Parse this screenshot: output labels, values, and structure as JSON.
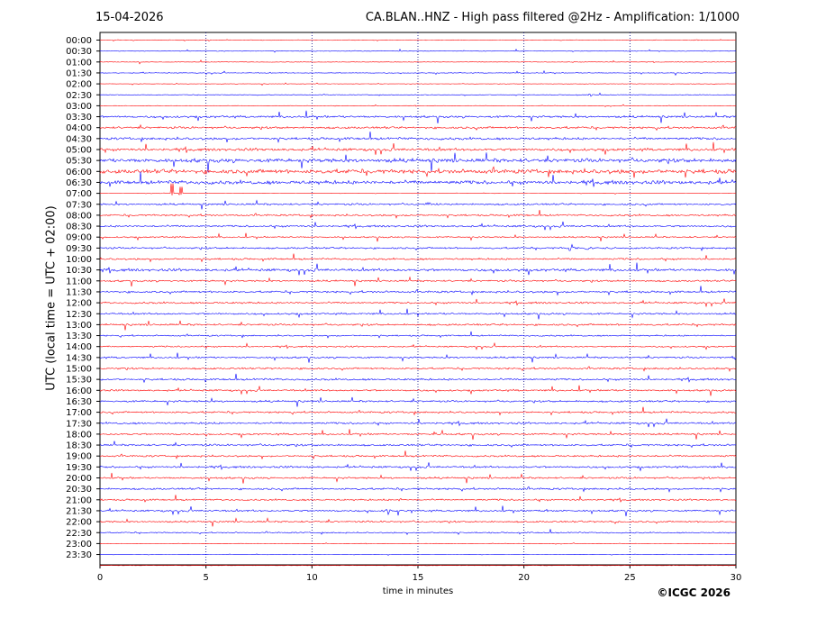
{
  "header": {
    "date": "15-04-2026",
    "title": "CA.BLAN..HNZ - High pass filtered @2Hz - Amplification: 1/1000"
  },
  "footer": {
    "copyright": "©ICGC 2026"
  },
  "chart_data": {
    "type": "line",
    "title": "CA.BLAN..HNZ - High pass filtered @2Hz - Amplification: 1/1000",
    "xlabel": "time in minutes",
    "ylabel": "UTC (local time = UTC + 02:00)",
    "xlim": [
      0,
      30
    ],
    "xticks": [
      0,
      5,
      10,
      15,
      20,
      25,
      30
    ],
    "grid_x": "dotted vertical lines at each x tick",
    "colors": {
      "odd_trace": "#ff0000",
      "even_trace": "#0000ff",
      "grid": "#000080"
    },
    "trace_labels": [
      "00:00",
      "00:30",
      "01:00",
      "01:30",
      "02:00",
      "02:30",
      "03:00",
      "03:30",
      "04:00",
      "04:30",
      "05:00",
      "05:30",
      "06:00",
      "06:30",
      "07:00",
      "07:30",
      "08:00",
      "08:30",
      "09:00",
      "09:30",
      "10:00",
      "10:30",
      "11:00",
      "11:30",
      "12:00",
      "12:30",
      "13:00",
      "13:30",
      "14:00",
      "14:30",
      "15:00",
      "15:30",
      "16:00",
      "16:30",
      "17:00",
      "17:30",
      "18:00",
      "18:30",
      "19:00",
      "19:30",
      "20:00",
      "20:30",
      "21:00",
      "21:30",
      "22:00",
      "22:30",
      "23:00",
      "23:30"
    ],
    "traces_visible": 49,
    "noise_level": [
      0.05,
      0.05,
      0.05,
      0.06,
      0.04,
      0.05,
      0.04,
      0.18,
      0.18,
      0.2,
      0.22,
      0.32,
      0.35,
      0.3,
      0.02,
      0.15,
      0.15,
      0.16,
      0.12,
      0.15,
      0.15,
      0.22,
      0.15,
      0.17,
      0.15,
      0.15,
      0.16,
      0.12,
      0.12,
      0.14,
      0.15,
      0.16,
      0.15,
      0.16,
      0.15,
      0.16,
      0.15,
      0.16,
      0.15,
      0.16,
      0.15,
      0.16,
      0.14,
      0.15,
      0.14,
      0.1,
      0.03,
      0.02,
      0.02
    ],
    "events": [
      {
        "trace": 0,
        "minute": 28.0,
        "amp": 0.35
      },
      {
        "trace": 5,
        "minute": 23.1,
        "amp": 0.55
      },
      {
        "trace": 14,
        "minute": 3.4,
        "amp": 1.2,
        "note": "step"
      },
      {
        "trace": 14,
        "minute": 3.8,
        "amp": 0.8,
        "note": "step"
      },
      {
        "trace": 15,
        "minute": 15.5,
        "amp": 0.7
      },
      {
        "trace": 19,
        "minute": 22.2,
        "amp": 0.9
      },
      {
        "trace": 19,
        "minute": 23.0,
        "amp": 0.8
      },
      {
        "trace": 29,
        "minute": 29.9,
        "amp": 0.8
      },
      {
        "trace": 36,
        "minute": 15.8,
        "amp": 0.6
      },
      {
        "trace": 42,
        "minute": 14.2,
        "amp": 0.5
      },
      {
        "trace": 43,
        "minute": 13.6,
        "amp": 0.7
      },
      {
        "trace": 43,
        "minute": 21.1,
        "amp": 0.5
      },
      {
        "trace": 44,
        "minute": 24.3,
        "amp": 0.55
      }
    ]
  }
}
